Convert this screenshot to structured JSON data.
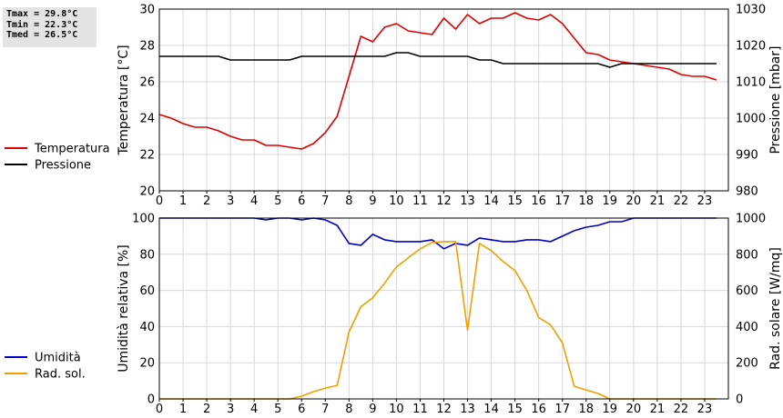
{
  "stats": {
    "tmax": "Tmax = 29.8°C",
    "tmin": "Tmin = 22.3°C",
    "tmed": "Tmed = 26.5°C"
  },
  "colors": {
    "temperature": "#dd0000",
    "pressure": "#000000",
    "humidity": "#0000cc",
    "radiation": "#f0a000"
  },
  "chart_data": [
    {
      "type": "line",
      "title": "",
      "xlabel": "",
      "ylabel": "Temperatura [°C]",
      "y2label": "Pressione [mbar]",
      "xlim": [
        0,
        24
      ],
      "ylim": [
        20,
        30
      ],
      "y2lim": [
        980,
        1030
      ],
      "x_ticks": [
        0,
        1,
        2,
        3,
        4,
        5,
        6,
        7,
        8,
        9,
        10,
        11,
        12,
        13,
        14,
        15,
        16,
        17,
        18,
        19,
        20,
        21,
        22,
        23
      ],
      "y_ticks": [
        20,
        22,
        24,
        26,
        28,
        30
      ],
      "y2_ticks": [
        980,
        990,
        1000,
        1010,
        1020,
        1030
      ],
      "grid": true,
      "legend_position": "left",
      "series": [
        {
          "name": "Temperatura",
          "axis": "left",
          "color": "#dd0000",
          "x": [
            0,
            0.5,
            1,
            1.5,
            2,
            2.5,
            3,
            3.5,
            4,
            4.5,
            5,
            5.5,
            6,
            6.5,
            7,
            7.5,
            8,
            8.5,
            9,
            9.5,
            10,
            10.5,
            11,
            11.5,
            12,
            12.5,
            13,
            13.5,
            14,
            14.5,
            15,
            15.5,
            16,
            16.5,
            17,
            17.5,
            18,
            18.5,
            19,
            19.5,
            20,
            20.5,
            21,
            21.5,
            22,
            22.5,
            23,
            23.5
          ],
          "values": [
            24.2,
            24.0,
            23.7,
            23.5,
            23.5,
            23.3,
            23.0,
            22.8,
            22.8,
            22.5,
            22.5,
            22.4,
            22.3,
            22.6,
            23.2,
            24.1,
            26.3,
            28.5,
            28.2,
            29.0,
            29.2,
            28.8,
            28.7,
            28.6,
            29.5,
            28.9,
            29.7,
            29.2,
            29.5,
            29.5,
            29.8,
            29.5,
            29.4,
            29.7,
            29.2,
            28.4,
            27.6,
            27.5,
            27.2,
            27.1,
            27.0,
            26.9,
            26.8,
            26.7,
            26.4,
            26.3,
            26.3,
            26.1
          ]
        },
        {
          "name": "Pressione",
          "axis": "right",
          "color": "#000000",
          "x": [
            0,
            2.5,
            3,
            5.5,
            6,
            9.5,
            10,
            10.5,
            11,
            13,
            13.5,
            14,
            14.5,
            18.5,
            19,
            19.5,
            23.5
          ],
          "values": [
            1017,
            1017,
            1016,
            1016,
            1017,
            1017,
            1018,
            1018,
            1017,
            1017,
            1016,
            1016,
            1015,
            1015,
            1014,
            1015,
            1015
          ]
        }
      ]
    },
    {
      "type": "line",
      "title": "",
      "xlabel": "",
      "ylabel": "Umidità relativa [%]",
      "y2label": "Rad. solare [W/mq]",
      "xlim": [
        0,
        24
      ],
      "ylim": [
        0,
        100
      ],
      "y2lim": [
        0,
        1000
      ],
      "x_ticks": [
        0,
        1,
        2,
        3,
        4,
        5,
        6,
        7,
        8,
        9,
        10,
        11,
        12,
        13,
        14,
        15,
        16,
        17,
        18,
        19,
        20,
        21,
        22,
        23
      ],
      "y_ticks": [
        0,
        20,
        40,
        60,
        80,
        100
      ],
      "y2_ticks": [
        0,
        200,
        400,
        600,
        800,
        1000
      ],
      "grid": true,
      "legend_position": "left",
      "series": [
        {
          "name": "Umidità",
          "axis": "left",
          "color": "#0000cc",
          "x": [
            0,
            4,
            4.5,
            5,
            5.5,
            6,
            6.5,
            7,
            7.5,
            8,
            8.5,
            9,
            9.5,
            10,
            10.5,
            11,
            11.5,
            12,
            12.5,
            13,
            13.5,
            14,
            14.5,
            15,
            15.5,
            16,
            16.5,
            17,
            17.5,
            18,
            18.5,
            19,
            19.5,
            20,
            20.5,
            21,
            22,
            23,
            23.5
          ],
          "values": [
            100,
            100,
            99,
            100,
            100,
            99,
            100,
            99,
            96,
            86,
            85,
            91,
            88,
            87,
            87,
            87,
            88,
            83,
            86,
            85,
            89,
            88,
            87,
            87,
            88,
            88,
            87,
            90,
            93,
            95,
            96,
            98,
            98,
            100,
            100,
            100,
            100,
            100,
            100
          ]
        },
        {
          "name": "Rad. sol.",
          "axis": "right",
          "color": "#f0a000",
          "x": [
            0,
            5.5,
            6,
            6.5,
            7,
            7.5,
            8,
            8.5,
            9,
            9.5,
            10,
            10.5,
            11,
            11.5,
            12,
            12.5,
            13,
            13.5,
            14,
            14.5,
            15,
            15.5,
            16,
            16.5,
            17,
            17.5,
            18,
            18.5,
            19,
            19.5,
            23.5
          ],
          "values": [
            0,
            0,
            15,
            40,
            60,
            75,
            370,
            510,
            560,
            640,
            730,
            780,
            830,
            865,
            870,
            870,
            380,
            860,
            820,
            760,
            710,
            600,
            450,
            410,
            310,
            70,
            50,
            30,
            0,
            0,
            0
          ]
        }
      ]
    }
  ]
}
